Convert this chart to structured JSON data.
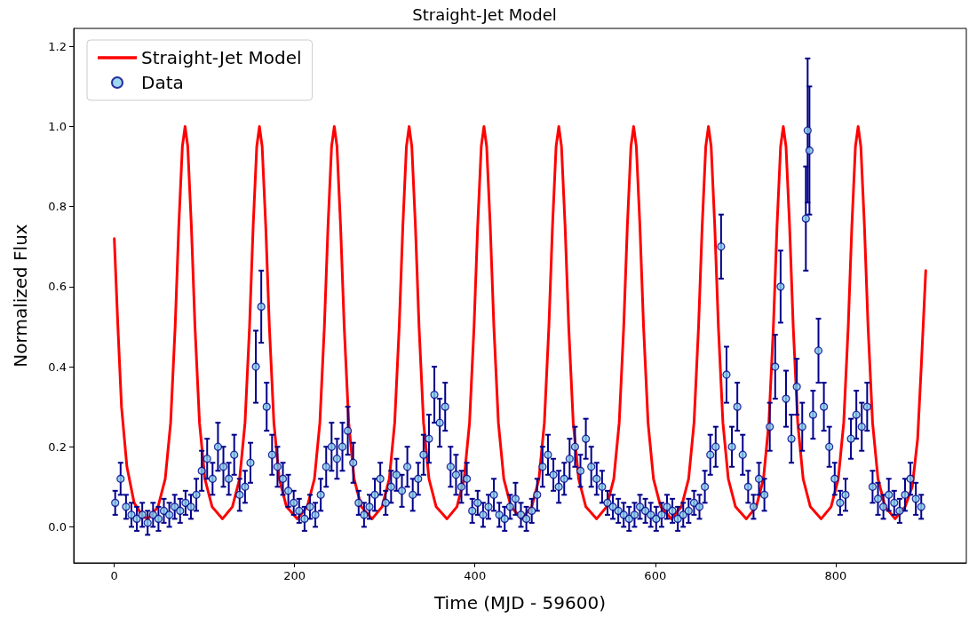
{
  "chart_data": {
    "type": "scatter",
    "title": "Straight-Jet Model",
    "xlabel": "Time (MJD - 59600)",
    "ylabel": "Normalized Flux",
    "xlim": [
      -45,
      945
    ],
    "xticks": [
      0,
      200,
      400,
      600,
      800
    ],
    "ylim": [
      -0.09,
      1.245
    ],
    "yticks": [
      {
        "value": 0,
        "label": "0.0"
      },
      0.2,
      0.4,
      0.6,
      0.8,
      {
        "value": 1,
        "label": "1.0"
      },
      1.2
    ],
    "grid": false,
    "legend": "top left",
    "marker": "circle",
    "series": [
      {
        "name": "Straight-Jet Model",
        "type": "line",
        "color": "#ff0000",
        "marker": "none",
        "line_style": "solid",
        "x": [
          0,
          4,
          8,
          14,
          22,
          32,
          37.5,
          48.5,
          56.5,
          62.5,
          67.5,
          71.5,
          75.5,
          78.5,
          81.5,
          85.5,
          89.5,
          94.5,
          100.5,
          108.5,
          120,
          131,
          139,
          145,
          150,
          154,
          158,
          161,
          164,
          168,
          172,
          177,
          183,
          191,
          203,
          214,
          222,
          228,
          233,
          237,
          241,
          244,
          247,
          251,
          255,
          260,
          266,
          274,
          286,
          297,
          305,
          311,
          316,
          320,
          324,
          327,
          330,
          334,
          338,
          343,
          349,
          357,
          369,
          380,
          388,
          394,
          399,
          403,
          407,
          410,
          413,
          417,
          421,
          426,
          432,
          440,
          452,
          463,
          471,
          477,
          482,
          486,
          490,
          493,
          496,
          500,
          504,
          509,
          515,
          523,
          535,
          546,
          554,
          560,
          565,
          569,
          573,
          576,
          579,
          583,
          587,
          592,
          598,
          606,
          618,
          629,
          637,
          643,
          648,
          652,
          656,
          659,
          662,
          666,
          670,
          675,
          681,
          689,
          701,
          712,
          720,
          726,
          731,
          735,
          739,
          742,
          745,
          749,
          753,
          758,
          764,
          772,
          784,
          795,
          803,
          809,
          814,
          818,
          822,
          825,
          828,
          832,
          836,
          841,
          847,
          855,
          866,
          877,
          885,
          891,
          895,
          900
        ],
        "values": [
          0.72,
          0.5,
          0.3,
          0.15,
          0.06,
          0.025,
          0.02,
          0.05,
          0.12,
          0.26,
          0.5,
          0.75,
          0.95,
          1.0,
          0.95,
          0.75,
          0.5,
          0.26,
          0.12,
          0.05,
          0.02,
          0.05,
          0.12,
          0.26,
          0.5,
          0.75,
          0.95,
          1.0,
          0.95,
          0.75,
          0.5,
          0.26,
          0.12,
          0.05,
          0.02,
          0.05,
          0.12,
          0.26,
          0.5,
          0.75,
          0.95,
          1.0,
          0.95,
          0.75,
          0.5,
          0.26,
          0.12,
          0.05,
          0.02,
          0.05,
          0.12,
          0.26,
          0.5,
          0.75,
          0.95,
          1.0,
          0.95,
          0.75,
          0.5,
          0.26,
          0.12,
          0.05,
          0.02,
          0.05,
          0.12,
          0.26,
          0.5,
          0.75,
          0.95,
          1.0,
          0.95,
          0.75,
          0.5,
          0.26,
          0.12,
          0.05,
          0.02,
          0.05,
          0.12,
          0.26,
          0.5,
          0.75,
          0.95,
          1.0,
          0.95,
          0.75,
          0.5,
          0.26,
          0.12,
          0.05,
          0.02,
          0.05,
          0.12,
          0.26,
          0.5,
          0.75,
          0.95,
          1.0,
          0.95,
          0.75,
          0.5,
          0.26,
          0.12,
          0.05,
          0.02,
          0.05,
          0.12,
          0.26,
          0.5,
          0.75,
          0.95,
          1.0,
          0.95,
          0.75,
          0.5,
          0.26,
          0.12,
          0.05,
          0.02,
          0.05,
          0.12,
          0.26,
          0.5,
          0.75,
          0.95,
          1.0,
          0.95,
          0.75,
          0.5,
          0.26,
          0.12,
          0.05,
          0.02,
          0.05,
          0.12,
          0.26,
          0.5,
          0.75,
          0.95,
          1.0,
          0.95,
          0.75,
          0.5,
          0.26,
          0.12,
          0.05,
          0.02,
          0.05,
          0.1,
          0.22,
          0.4,
          0.64
        ]
      },
      {
        "name": "Data",
        "color": "#87ceeb",
        "x": [
          1,
          7,
          13,
          19,
          25,
          31,
          37,
          43,
          49,
          55,
          61,
          67,
          73,
          79,
          85,
          91,
          97,
          103,
          109,
          115,
          121,
          127,
          133,
          139,
          145,
          151,
          157,
          163,
          169,
          175,
          181,
          187,
          193,
          199,
          205,
          211,
          217,
          223,
          229,
          235,
          241,
          247,
          253,
          259,
          265,
          271,
          277,
          283,
          289,
          295,
          301,
          307,
          313,
          319,
          325,
          331,
          337,
          343,
          349,
          355,
          361,
          367,
          373,
          379,
          385,
          391,
          397,
          403,
          409,
          415,
          421,
          427,
          433,
          439,
          445,
          451,
          457,
          463,
          469,
          475,
          481,
          487,
          493,
          499,
          505,
          511,
          517,
          523,
          529,
          535,
          541,
          547,
          553,
          559,
          565,
          571,
          577,
          583,
          589,
          595,
          601,
          607,
          613,
          619,
          625,
          631,
          637,
          643,
          649,
          655,
          661,
          667,
          673,
          679,
          685,
          691,
          697,
          703,
          709,
          715,
          721,
          727,
          733,
          739,
          745,
          751,
          757,
          763,
          767,
          769,
          771,
          775,
          781,
          787,
          793,
          799,
          805,
          811,
          817,
          823,
          829,
          835,
          841,
          847,
          853,
          859,
          865,
          871,
          877,
          883,
          889,
          895
        ],
        "values": [
          0.06,
          0.12,
          0.05,
          0.03,
          0.02,
          0.03,
          0.01,
          0.03,
          0.02,
          0.04,
          0.03,
          0.05,
          0.04,
          0.06,
          0.05,
          0.08,
          0.14,
          0.17,
          0.12,
          0.2,
          0.15,
          0.12,
          0.18,
          0.08,
          0.1,
          0.16,
          0.4,
          0.55,
          0.3,
          0.18,
          0.15,
          0.12,
          0.09,
          0.06,
          0.04,
          0.02,
          0.05,
          0.03,
          0.08,
          0.15,
          0.2,
          0.17,
          0.2,
          0.24,
          0.16,
          0.06,
          0.03,
          0.05,
          0.08,
          0.12,
          0.06,
          0.1,
          0.13,
          0.09,
          0.15,
          0.08,
          0.12,
          0.18,
          0.22,
          0.33,
          0.26,
          0.3,
          0.15,
          0.13,
          0.1,
          0.12,
          0.04,
          0.06,
          0.03,
          0.05,
          0.08,
          0.03,
          0.02,
          0.05,
          0.07,
          0.03,
          0.02,
          0.04,
          0.08,
          0.15,
          0.18,
          0.13,
          0.1,
          0.12,
          0.17,
          0.2,
          0.14,
          0.22,
          0.15,
          0.12,
          0.1,
          0.06,
          0.05,
          0.04,
          0.03,
          0.02,
          0.03,
          0.05,
          0.04,
          0.03,
          0.02,
          0.03,
          0.05,
          0.04,
          0.02,
          0.03,
          0.04,
          0.06,
          0.05,
          0.1,
          0.18,
          0.2,
          0.7,
          0.38,
          0.2,
          0.3,
          0.18,
          0.1,
          0.05,
          0.12,
          0.08,
          0.25,
          0.4,
          0.6,
          0.32,
          0.22,
          0.35,
          0.25,
          0.77,
          0.99,
          0.94,
          0.28,
          0.44,
          0.3,
          0.2,
          0.12,
          0.06,
          0.08,
          0.22,
          0.28,
          0.25,
          0.3,
          0.1,
          0.07,
          0.05,
          0.08,
          0.06,
          0.04,
          0.08,
          0.12,
          0.07,
          0.05
        ],
        "errors": [
          0.03,
          0.04,
          0.03,
          0.03,
          0.03,
          0.03,
          0.03,
          0.03,
          0.03,
          0.03,
          0.03,
          0.03,
          0.03,
          0.03,
          0.03,
          0.04,
          0.05,
          0.05,
          0.04,
          0.06,
          0.05,
          0.04,
          0.05,
          0.04,
          0.04,
          0.05,
          0.09,
          0.09,
          0.06,
          0.05,
          0.05,
          0.04,
          0.04,
          0.03,
          0.03,
          0.03,
          0.03,
          0.03,
          0.04,
          0.05,
          0.06,
          0.05,
          0.06,
          0.06,
          0.05,
          0.03,
          0.03,
          0.03,
          0.04,
          0.04,
          0.03,
          0.04,
          0.04,
          0.04,
          0.05,
          0.04,
          0.04,
          0.05,
          0.06,
          0.07,
          0.06,
          0.06,
          0.05,
          0.05,
          0.04,
          0.04,
          0.03,
          0.03,
          0.03,
          0.03,
          0.04,
          0.03,
          0.03,
          0.03,
          0.04,
          0.03,
          0.03,
          0.03,
          0.04,
          0.05,
          0.05,
          0.04,
          0.04,
          0.04,
          0.05,
          0.05,
          0.04,
          0.05,
          0.05,
          0.04,
          0.04,
          0.03,
          0.03,
          0.03,
          0.03,
          0.03,
          0.03,
          0.03,
          0.03,
          0.03,
          0.03,
          0.03,
          0.03,
          0.03,
          0.03,
          0.03,
          0.03,
          0.03,
          0.03,
          0.04,
          0.05,
          0.05,
          0.08,
          0.07,
          0.05,
          0.06,
          0.05,
          0.04,
          0.03,
          0.04,
          0.04,
          0.06,
          0.08,
          0.09,
          0.07,
          0.06,
          0.07,
          0.06,
          0.13,
          0.18,
          0.16,
          0.06,
          0.08,
          0.06,
          0.05,
          0.04,
          0.03,
          0.04,
          0.05,
          0.06,
          0.06,
          0.06,
          0.04,
          0.04,
          0.03,
          0.04,
          0.03,
          0.03,
          0.04,
          0.04,
          0.04,
          0.03
        ]
      }
    ]
  }
}
